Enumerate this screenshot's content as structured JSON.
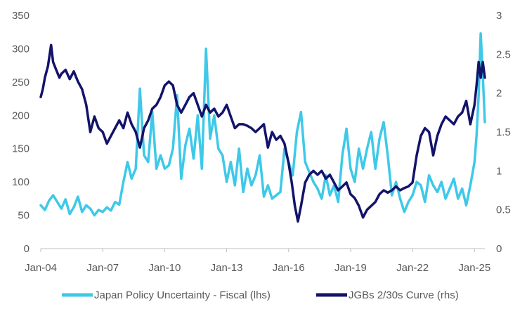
{
  "chart_data": {
    "type": "line",
    "title": "",
    "xlabel": "",
    "ylabel_left": "",
    "ylabel_right": "",
    "x_ticks": [
      "Jan-04",
      "Jan-07",
      "Jan-10",
      "Jan-13",
      "Jan-16",
      "Jan-19",
      "Jan-22",
      "Jan-25"
    ],
    "x_range": [
      2004.0,
      2025.5
    ],
    "y_left": {
      "min": 0,
      "max": 350,
      "ticks": [
        0,
        50,
        100,
        150,
        200,
        250,
        300,
        350
      ]
    },
    "y_right": {
      "min": 0,
      "max": 3,
      "ticks": [
        0,
        0.5,
        1,
        1.5,
        2,
        2.5,
        3
      ]
    },
    "grid": false,
    "legend_position": "bottom",
    "series": [
      {
        "name": "Japan Policy Uncertainty - Fiscal (lhs)",
        "axis": "left",
        "color": "#3ec9e8",
        "points": [
          [
            2004.0,
            65
          ],
          [
            2004.2,
            58
          ],
          [
            2004.4,
            72
          ],
          [
            2004.6,
            80
          ],
          [
            2004.8,
            70
          ],
          [
            2005.0,
            60
          ],
          [
            2005.2,
            74
          ],
          [
            2005.4,
            52
          ],
          [
            2005.6,
            62
          ],
          [
            2005.8,
            78
          ],
          [
            2006.0,
            55
          ],
          [
            2006.2,
            65
          ],
          [
            2006.4,
            60
          ],
          [
            2006.6,
            50
          ],
          [
            2006.8,
            58
          ],
          [
            2007.0,
            55
          ],
          [
            2007.2,
            62
          ],
          [
            2007.4,
            57
          ],
          [
            2007.6,
            70
          ],
          [
            2007.8,
            66
          ],
          [
            2008.0,
            100
          ],
          [
            2008.2,
            130
          ],
          [
            2008.4,
            105
          ],
          [
            2008.6,
            120
          ],
          [
            2008.8,
            240
          ],
          [
            2009.0,
            140
          ],
          [
            2009.2,
            130
          ],
          [
            2009.4,
            205
          ],
          [
            2009.6,
            120
          ],
          [
            2009.8,
            140
          ],
          [
            2010.0,
            120
          ],
          [
            2010.2,
            125
          ],
          [
            2010.4,
            150
          ],
          [
            2010.6,
            230
          ],
          [
            2010.8,
            105
          ],
          [
            2011.0,
            155
          ],
          [
            2011.2,
            180
          ],
          [
            2011.4,
            135
          ],
          [
            2011.6,
            200
          ],
          [
            2011.8,
            120
          ],
          [
            2012.0,
            300
          ],
          [
            2012.2,
            165
          ],
          [
            2012.4,
            200
          ],
          [
            2012.6,
            150
          ],
          [
            2012.8,
            140
          ],
          [
            2013.0,
            100
          ],
          [
            2013.2,
            130
          ],
          [
            2013.4,
            95
          ],
          [
            2013.6,
            150
          ],
          [
            2013.8,
            85
          ],
          [
            2014.0,
            120
          ],
          [
            2014.2,
            95
          ],
          [
            2014.4,
            110
          ],
          [
            2014.6,
            140
          ],
          [
            2014.8,
            78
          ],
          [
            2015.0,
            95
          ],
          [
            2015.2,
            75
          ],
          [
            2015.4,
            80
          ],
          [
            2015.6,
            85
          ],
          [
            2015.8,
            150
          ],
          [
            2016.0,
            130
          ],
          [
            2016.2,
            110
          ],
          [
            2016.4,
            175
          ],
          [
            2016.6,
            205
          ],
          [
            2016.8,
            130
          ],
          [
            2017.0,
            115
          ],
          [
            2017.2,
            100
          ],
          [
            2017.4,
            90
          ],
          [
            2017.6,
            75
          ],
          [
            2017.8,
            110
          ],
          [
            2018.0,
            80
          ],
          [
            2018.2,
            95
          ],
          [
            2018.4,
            70
          ],
          [
            2018.6,
            140
          ],
          [
            2018.8,
            180
          ],
          [
            2019.0,
            120
          ],
          [
            2019.2,
            100
          ],
          [
            2019.4,
            150
          ],
          [
            2019.6,
            120
          ],
          [
            2019.8,
            150
          ],
          [
            2020.0,
            175
          ],
          [
            2020.2,
            120
          ],
          [
            2020.4,
            165
          ],
          [
            2020.6,
            190
          ],
          [
            2020.8,
            140
          ],
          [
            2021.0,
            80
          ],
          [
            2021.2,
            100
          ],
          [
            2021.4,
            75
          ],
          [
            2021.6,
            55
          ],
          [
            2021.8,
            70
          ],
          [
            2022.0,
            80
          ],
          [
            2022.2,
            100
          ],
          [
            2022.4,
            95
          ],
          [
            2022.6,
            70
          ],
          [
            2022.8,
            110
          ],
          [
            2023.0,
            95
          ],
          [
            2023.2,
            85
          ],
          [
            2023.4,
            100
          ],
          [
            2023.6,
            75
          ],
          [
            2023.8,
            90
          ],
          [
            2024.0,
            105
          ],
          [
            2024.2,
            75
          ],
          [
            2024.4,
            90
          ],
          [
            2024.6,
            65
          ],
          [
            2024.8,
            95
          ],
          [
            2025.0,
            130
          ],
          [
            2025.1,
            170
          ],
          [
            2025.2,
            230
          ],
          [
            2025.3,
            323
          ],
          [
            2025.4,
            260
          ],
          [
            2025.5,
            190
          ]
        ]
      },
      {
        "name": "JGBs 2/30s Curve (rhs)",
        "axis": "right",
        "color": "#13136b",
        "points": [
          [
            2004.0,
            1.95
          ],
          [
            2004.1,
            2.05
          ],
          [
            2004.2,
            2.2
          ],
          [
            2004.35,
            2.35
          ],
          [
            2004.5,
            2.62
          ],
          [
            2004.6,
            2.4
          ],
          [
            2004.75,
            2.3
          ],
          [
            2004.9,
            2.2
          ],
          [
            2005.0,
            2.25
          ],
          [
            2005.2,
            2.3
          ],
          [
            2005.4,
            2.18
          ],
          [
            2005.6,
            2.28
          ],
          [
            2005.8,
            2.15
          ],
          [
            2006.0,
            2.05
          ],
          [
            2006.2,
            1.85
          ],
          [
            2006.4,
            1.5
          ],
          [
            2006.6,
            1.7
          ],
          [
            2006.8,
            1.55
          ],
          [
            2007.0,
            1.5
          ],
          [
            2007.2,
            1.35
          ],
          [
            2007.4,
            1.45
          ],
          [
            2007.6,
            1.55
          ],
          [
            2007.8,
            1.65
          ],
          [
            2008.0,
            1.55
          ],
          [
            2008.2,
            1.75
          ],
          [
            2008.4,
            1.6
          ],
          [
            2008.6,
            1.5
          ],
          [
            2008.8,
            1.3
          ],
          [
            2009.0,
            1.55
          ],
          [
            2009.2,
            1.65
          ],
          [
            2009.4,
            1.8
          ],
          [
            2009.6,
            1.85
          ],
          [
            2009.8,
            1.95
          ],
          [
            2010.0,
            2.1
          ],
          [
            2010.2,
            2.15
          ],
          [
            2010.4,
            2.1
          ],
          [
            2010.6,
            1.85
          ],
          [
            2010.8,
            1.75
          ],
          [
            2011.0,
            1.85
          ],
          [
            2011.2,
            1.95
          ],
          [
            2011.4,
            2.0
          ],
          [
            2011.6,
            1.85
          ],
          [
            2011.8,
            1.7
          ],
          [
            2012.0,
            1.85
          ],
          [
            2012.2,
            1.75
          ],
          [
            2012.4,
            1.8
          ],
          [
            2012.6,
            1.7
          ],
          [
            2012.8,
            1.75
          ],
          [
            2013.0,
            1.85
          ],
          [
            2013.2,
            1.7
          ],
          [
            2013.4,
            1.55
          ],
          [
            2013.6,
            1.6
          ],
          [
            2013.8,
            1.6
          ],
          [
            2014.0,
            1.58
          ],
          [
            2014.2,
            1.55
          ],
          [
            2014.4,
            1.5
          ],
          [
            2014.6,
            1.55
          ],
          [
            2014.8,
            1.6
          ],
          [
            2015.0,
            1.3
          ],
          [
            2015.2,
            1.5
          ],
          [
            2015.4,
            1.4
          ],
          [
            2015.6,
            1.45
          ],
          [
            2015.8,
            1.35
          ],
          [
            2016.0,
            1.1
          ],
          [
            2016.15,
            0.85
          ],
          [
            2016.3,
            0.55
          ],
          [
            2016.45,
            0.35
          ],
          [
            2016.6,
            0.55
          ],
          [
            2016.8,
            0.85
          ],
          [
            2017.0,
            0.95
          ],
          [
            2017.2,
            1.0
          ],
          [
            2017.4,
            0.95
          ],
          [
            2017.6,
            1.0
          ],
          [
            2017.8,
            0.9
          ],
          [
            2018.0,
            0.95
          ],
          [
            2018.2,
            0.85
          ],
          [
            2018.4,
            0.75
          ],
          [
            2018.6,
            0.8
          ],
          [
            2018.8,
            0.85
          ],
          [
            2019.0,
            0.7
          ],
          [
            2019.2,
            0.65
          ],
          [
            2019.4,
            0.55
          ],
          [
            2019.6,
            0.4
          ],
          [
            2019.8,
            0.5
          ],
          [
            2020.0,
            0.55
          ],
          [
            2020.2,
            0.6
          ],
          [
            2020.4,
            0.7
          ],
          [
            2020.6,
            0.75
          ],
          [
            2020.8,
            0.72
          ],
          [
            2021.0,
            0.75
          ],
          [
            2021.2,
            0.8
          ],
          [
            2021.4,
            0.75
          ],
          [
            2021.6,
            0.78
          ],
          [
            2021.8,
            0.8
          ],
          [
            2022.0,
            0.85
          ],
          [
            2022.2,
            1.2
          ],
          [
            2022.4,
            1.45
          ],
          [
            2022.6,
            1.55
          ],
          [
            2022.8,
            1.5
          ],
          [
            2023.0,
            1.2
          ],
          [
            2023.2,
            1.45
          ],
          [
            2023.4,
            1.6
          ],
          [
            2023.6,
            1.7
          ],
          [
            2023.8,
            1.65
          ],
          [
            2024.0,
            1.6
          ],
          [
            2024.2,
            1.7
          ],
          [
            2024.4,
            1.75
          ],
          [
            2024.6,
            1.9
          ],
          [
            2024.8,
            1.6
          ],
          [
            2025.0,
            1.85
          ],
          [
            2025.1,
            2.1
          ],
          [
            2025.2,
            2.4
          ],
          [
            2025.3,
            2.2
          ],
          [
            2025.4,
            2.4
          ],
          [
            2025.5,
            2.2
          ]
        ]
      }
    ]
  }
}
